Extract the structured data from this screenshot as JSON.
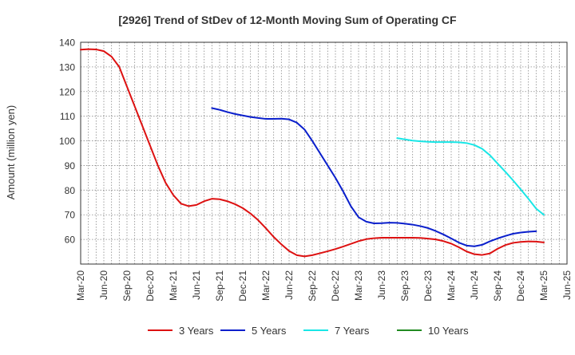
{
  "chart_data": {
    "type": "line",
    "title": "[2926]  Trend of StDev of 12-Month Moving Sum of Operating CF",
    "ylabel": "Amount (million yen)",
    "xlabel": "",
    "ylim": [
      50,
      140
    ],
    "y_ticks": [
      60,
      70,
      80,
      90,
      100,
      110,
      120,
      130,
      140
    ],
    "x_tick_labels": [
      "Mar-20",
      "Jun-20",
      "Sep-20",
      "Dec-20",
      "Mar-21",
      "Jun-21",
      "Sep-21",
      "Dec-21",
      "Mar-22",
      "Jun-22",
      "Sep-22",
      "Dec-22",
      "Mar-23",
      "Jun-23",
      "Sep-23",
      "Dec-23",
      "Mar-24",
      "Jun-24",
      "Sep-24",
      "Dec-24",
      "Mar-25",
      "Jun-25"
    ],
    "x_unit": "month",
    "x_start": "2020-03",
    "x_end": "2025-06",
    "grid": true,
    "legend_position": "bottom",
    "series": [
      {
        "name": "3 Years",
        "color": "#dd1111",
        "points": [
          [
            "2020-03",
            137
          ],
          [
            "2020-04",
            137.2
          ],
          [
            "2020-05",
            137.1
          ],
          [
            "2020-06",
            136.4
          ],
          [
            "2020-07",
            134.2
          ],
          [
            "2020-08",
            130
          ],
          [
            "2020-09",
            122
          ],
          [
            "2020-10",
            114
          ],
          [
            "2020-11",
            106
          ],
          [
            "2020-12",
            98
          ],
          [
            "2021-01",
            90
          ],
          [
            "2021-02",
            83
          ],
          [
            "2021-03",
            78
          ],
          [
            "2021-04",
            74.5
          ],
          [
            "2021-05",
            73.5
          ],
          [
            "2021-06",
            74
          ],
          [
            "2021-07",
            75.5
          ],
          [
            "2021-08",
            76.5
          ],
          [
            "2021-09",
            76.3
          ],
          [
            "2021-10",
            75.5
          ],
          [
            "2021-11",
            74.3
          ],
          [
            "2021-12",
            72.7
          ],
          [
            "2022-01",
            70.5
          ],
          [
            "2022-02",
            67.8
          ],
          [
            "2022-03",
            64.5
          ],
          [
            "2022-04",
            61
          ],
          [
            "2022-05",
            58
          ],
          [
            "2022-06",
            55.3
          ],
          [
            "2022-07",
            53.6
          ],
          [
            "2022-08",
            53.1
          ],
          [
            "2022-09",
            53.6
          ],
          [
            "2022-10",
            54.4
          ],
          [
            "2022-11",
            55.2
          ],
          [
            "2022-12",
            56.1
          ],
          [
            "2023-01",
            57.1
          ],
          [
            "2023-02",
            58.2
          ],
          [
            "2023-03",
            59.3
          ],
          [
            "2023-04",
            60.1
          ],
          [
            "2023-05",
            60.5
          ],
          [
            "2023-06",
            60.7
          ],
          [
            "2023-07",
            60.7
          ],
          [
            "2023-08",
            60.7
          ],
          [
            "2023-09",
            60.7
          ],
          [
            "2023-10",
            60.7
          ],
          [
            "2023-11",
            60.6
          ],
          [
            "2023-12",
            60.3
          ],
          [
            "2023-13",
            60
          ],
          [
            "2024-02",
            59.3
          ],
          [
            "2024-03",
            58.3
          ],
          [
            "2024-04",
            56.8
          ],
          [
            "2024-05",
            55.1
          ],
          [
            "2024-06",
            54
          ],
          [
            "2024-07",
            53.7
          ],
          [
            "2024-08",
            54.3
          ],
          [
            "2024-09",
            56.2
          ],
          [
            "2024-10",
            57.7
          ],
          [
            "2024-11",
            58.6
          ],
          [
            "2024-12",
            59
          ],
          [
            "2025-01",
            59.2
          ],
          [
            "2025-02",
            59.1
          ],
          [
            "2025-03",
            58.8
          ]
        ]
      },
      {
        "name": "5 Years",
        "color": "#0a1fcc",
        "points": [
          [
            "2021-08",
            113.3
          ],
          [
            "2021-09",
            112.6
          ],
          [
            "2021-10",
            111.7
          ],
          [
            "2021-11",
            110.9
          ],
          [
            "2021-12",
            110.3
          ],
          [
            "2022-01",
            109.7
          ],
          [
            "2022-02",
            109.3
          ],
          [
            "2022-03",
            108.9
          ],
          [
            "2022-04",
            108.9
          ],
          [
            "2022-05",
            109
          ],
          [
            "2022-06",
            108.7
          ],
          [
            "2022-07",
            107.4
          ],
          [
            "2022-08",
            104.6
          ],
          [
            "2022-09",
            100
          ],
          [
            "2022-10",
            95
          ],
          [
            "2022-11",
            90
          ],
          [
            "2022-12",
            85
          ],
          [
            "2023-01",
            79.5
          ],
          [
            "2023-02",
            73.5
          ],
          [
            "2023-03",
            69
          ],
          [
            "2023-04",
            67.2
          ],
          [
            "2023-05",
            66.5
          ],
          [
            "2023-06",
            66.6
          ],
          [
            "2023-07",
            66.8
          ],
          [
            "2023-08",
            66.7
          ],
          [
            "2023-09",
            66.4
          ],
          [
            "2023-10",
            66
          ],
          [
            "2023-11",
            65.4
          ],
          [
            "2023-12",
            64.6
          ],
          [
            "2024-01",
            63.4
          ],
          [
            "2024-02",
            62
          ],
          [
            "2024-03",
            60.4
          ],
          [
            "2024-04",
            58.7
          ],
          [
            "2024-05",
            57.5
          ],
          [
            "2024-06",
            57.2
          ],
          [
            "2024-07",
            57.8
          ],
          [
            "2024-08",
            59.2
          ],
          [
            "2024-09",
            60.4
          ],
          [
            "2024-10",
            61.4
          ],
          [
            "2024-11",
            62.3
          ],
          [
            "2024-12",
            62.8
          ],
          [
            "2025-01",
            63.1
          ],
          [
            "2025-02",
            63.3
          ]
        ]
      },
      {
        "name": "7 Years",
        "color": "#19e6e6",
        "points": [
          [
            "2023-08",
            101.1
          ],
          [
            "2023-09",
            100.6
          ],
          [
            "2023-10",
            100.1
          ],
          [
            "2023-11",
            99.8
          ],
          [
            "2023-12",
            99.6
          ],
          [
            "2024-01",
            99.5
          ],
          [
            "2024-02",
            99.5
          ],
          [
            "2024-03",
            99.5
          ],
          [
            "2024-04",
            99.4
          ],
          [
            "2024-05",
            99.1
          ],
          [
            "2024-06",
            98.3
          ],
          [
            "2024-07",
            96.8
          ],
          [
            "2024-08",
            94.2
          ],
          [
            "2024-09",
            90.8
          ],
          [
            "2024-10",
            87.5
          ],
          [
            "2024-11",
            84
          ],
          [
            "2024-12",
            80.3
          ],
          [
            "2025-01",
            76.5
          ],
          [
            "2025-02",
            72.5
          ],
          [
            "2025-03",
            70
          ]
        ]
      },
      {
        "name": "10 Years",
        "color": "#228b22",
        "points": []
      }
    ]
  }
}
